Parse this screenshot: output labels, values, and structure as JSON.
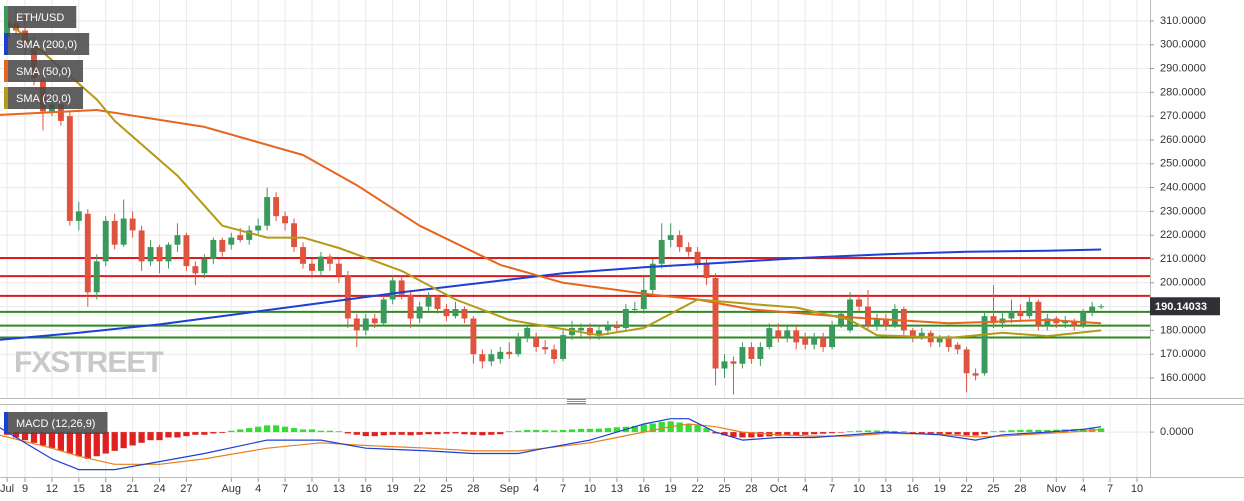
{
  "chart_data": {
    "type": "candlestick",
    "xlim": [
      -2.79,
      125.45
    ],
    "ylim": [
      151.6,
      318.8
    ],
    "grid": true,
    "xticks": [
      {
        "value": -2,
        "label": "Jul"
      },
      {
        "value": 0,
        "label": "9"
      },
      {
        "value": 3,
        "label": "12"
      },
      {
        "value": 6,
        "label": "15"
      },
      {
        "value": 9,
        "label": "18"
      },
      {
        "value": 12,
        "label": "21"
      },
      {
        "value": 15,
        "label": "24"
      },
      {
        "value": 18,
        "label": "27"
      },
      {
        "value": 23,
        "label": "Aug"
      },
      {
        "value": 26,
        "label": "4"
      },
      {
        "value": 29,
        "label": "7"
      },
      {
        "value": 32,
        "label": "10"
      },
      {
        "value": 35,
        "label": "13"
      },
      {
        "value": 38,
        "label": "16"
      },
      {
        "value": 41,
        "label": "19"
      },
      {
        "value": 44,
        "label": "22"
      },
      {
        "value": 47,
        "label": "25"
      },
      {
        "value": 50,
        "label": "28"
      },
      {
        "value": 54,
        "label": "Sep"
      },
      {
        "value": 57,
        "label": "4"
      },
      {
        "value": 60,
        "label": "7"
      },
      {
        "value": 63,
        "label": "10"
      },
      {
        "value": 66,
        "label": "13"
      },
      {
        "value": 69,
        "label": "16"
      },
      {
        "value": 72,
        "label": "19"
      },
      {
        "value": 75,
        "label": "22"
      },
      {
        "value": 78,
        "label": "25"
      },
      {
        "value": 81,
        "label": "28"
      },
      {
        "value": 84,
        "label": "Oct"
      },
      {
        "value": 87,
        "label": "4"
      },
      {
        "value": 90,
        "label": "7"
      },
      {
        "value": 93,
        "label": "10"
      },
      {
        "value": 96,
        "label": "13"
      },
      {
        "value": 99,
        "label": "16"
      },
      {
        "value": 102,
        "label": "19"
      },
      {
        "value": 105,
        "label": "22"
      },
      {
        "value": 108,
        "label": "25"
      },
      {
        "value": 111,
        "label": "28"
      },
      {
        "value": 115,
        "label": "Nov"
      },
      {
        "value": 118,
        "label": "4"
      },
      {
        "value": 121,
        "label": "7"
      },
      {
        "value": 124,
        "label": "10"
      }
    ],
    "yticks": [
      {
        "value": 160,
        "label": "160.0000"
      },
      {
        "value": 170,
        "label": "170.0000"
      },
      {
        "value": 180,
        "label": "180.0000"
      },
      {
        "value": 190,
        "label": "190.0000"
      },
      {
        "value": 200,
        "label": "200.0000"
      },
      {
        "value": 210,
        "label": "210.0000"
      },
      {
        "value": 220,
        "label": "220.0000"
      },
      {
        "value": 230,
        "label": "230.0000"
      },
      {
        "value": 240,
        "label": "240.0000"
      },
      {
        "value": 250,
        "label": "250.0000"
      },
      {
        "value": 260,
        "label": "260.0000"
      },
      {
        "value": 270,
        "label": "270.0000"
      },
      {
        "value": 280,
        "label": "280.0000"
      },
      {
        "value": 290,
        "label": "290.0000"
      },
      {
        "value": 300,
        "label": "300.0000"
      },
      {
        "value": 310,
        "label": "310.0000"
      }
    ],
    "watermark": "FXSTREET",
    "last_price": 190.14033,
    "candles": {
      "name": "ETH/USD",
      "up_color": "#3a9a5b",
      "down_color": "#e0533f",
      "x": [
        -2,
        -1,
        0,
        1,
        2,
        3,
        4,
        5,
        6,
        7,
        8,
        9,
        10,
        11,
        12,
        13,
        14,
        15,
        16,
        17,
        18,
        19,
        20,
        21,
        22,
        23,
        24,
        25,
        26,
        27,
        28,
        29,
        30,
        31,
        32,
        33,
        34,
        35,
        36,
        37,
        38,
        39,
        40,
        41,
        42,
        43,
        44,
        45,
        46,
        47,
        48,
        49,
        50,
        51,
        52,
        53,
        54,
        55,
        56,
        57,
        58,
        59,
        60,
        61,
        62,
        63,
        64,
        65,
        66,
        67,
        68,
        69,
        70,
        71,
        72,
        73,
        74,
        75,
        76,
        77,
        78,
        79,
        80,
        81,
        82,
        83,
        84,
        85,
        86,
        87,
        88,
        89,
        90,
        91,
        92,
        93,
        94,
        95,
        96,
        97,
        98,
        99,
        100,
        101,
        102,
        103,
        104,
        105,
        106,
        107,
        108,
        109,
        110,
        111,
        112,
        113,
        114,
        115,
        116,
        117,
        118,
        119,
        120
      ],
      "open": [
        303,
        309,
        306,
        300,
        285,
        272,
        275,
        270,
        226,
        229,
        196,
        209,
        226,
        216,
        227,
        222,
        209,
        215,
        209,
        216,
        220,
        207,
        204,
        210,
        218,
        216,
        220,
        218,
        222,
        224,
        236,
        228,
        225,
        215,
        208,
        205,
        211,
        208,
        203,
        185,
        180,
        185,
        183,
        193,
        201,
        195,
        185,
        190,
        194,
        189,
        186,
        189,
        185,
        170,
        167,
        168,
        171,
        170,
        177,
        177,
        173,
        172,
        168,
        178,
        180,
        181,
        178,
        180,
        182,
        181,
        189,
        189,
        197,
        208,
        218,
        220,
        215,
        213,
        208,
        202,
        164,
        167,
        166,
        173,
        168,
        173,
        180,
        177,
        180,
        177,
        174,
        177,
        173,
        182,
        180,
        193,
        190,
        182,
        185,
        182,
        189,
        180,
        177,
        179,
        175,
        177,
        174,
        172,
        162,
        162,
        186,
        183,
        185,
        188,
        186,
        192,
        182,
        185,
        183,
        184,
        182,
        188,
        190
      ],
      "high": [
        312,
        316,
        314,
        304,
        288,
        277,
        278,
        272,
        234,
        231,
        212,
        228,
        229,
        235,
        230,
        224,
        218,
        216,
        217,
        225,
        221,
        209,
        212,
        219,
        219,
        221,
        223,
        224,
        227,
        240,
        238,
        230,
        227,
        217,
        210,
        213,
        212,
        210,
        205,
        187,
        187,
        187,
        195,
        203,
        203,
        197,
        192,
        196,
        195,
        191,
        192,
        190,
        186,
        172,
        172,
        173,
        175,
        179,
        182,
        179,
        176,
        174,
        180,
        184,
        183,
        183,
        182,
        184,
        184,
        191,
        192,
        203,
        210,
        225,
        225,
        222,
        217,
        215,
        210,
        204,
        170,
        169,
        175,
        175,
        175,
        183,
        183,
        182,
        182,
        179,
        179,
        179,
        184,
        188,
        196,
        195,
        197,
        187,
        187,
        191,
        190,
        181,
        181,
        180,
        178,
        178,
        175,
        173,
        164,
        188,
        199,
        188,
        193,
        191,
        194,
        193,
        187,
        186,
        186,
        185,
        189,
        192,
        191
      ],
      "low": [
        300,
        304,
        296,
        283,
        264,
        270,
        266,
        224,
        222,
        190,
        193,
        207,
        214,
        215,
        219,
        205,
        207,
        204,
        206,
        213,
        205,
        199,
        202,
        208,
        211,
        214,
        217,
        216,
        220,
        222,
        226,
        222,
        213,
        206,
        202,
        203,
        205,
        200,
        181,
        173,
        178,
        181,
        182,
        191,
        193,
        181,
        183,
        188,
        187,
        184,
        185,
        183,
        166,
        164,
        165,
        166,
        168,
        169,
        175,
        171,
        170,
        166,
        167,
        176,
        177,
        176,
        176,
        178,
        179,
        180,
        187,
        187,
        195,
        206,
        215,
        213,
        211,
        206,
        199,
        157,
        160,
        153,
        164,
        166,
        165,
        172,
        175,
        175,
        172,
        172,
        172,
        171,
        172,
        181,
        179,
        188,
        180,
        180,
        180,
        181,
        178,
        175,
        176,
        173,
        173,
        171,
        170,
        154,
        159,
        161,
        181,
        181,
        183,
        184,
        185,
        180,
        180,
        181,
        181,
        180,
        181,
        186,
        189
      ],
      "close": [
        309,
        306,
        300,
        286,
        272,
        275,
        268,
        226,
        230,
        196,
        209,
        226,
        216,
        227,
        222,
        209,
        215,
        209,
        216,
        220,
        207,
        204,
        210,
        218,
        213,
        219,
        218,
        222,
        224,
        236,
        228,
        225,
        215,
        208,
        205,
        211,
        208,
        203,
        185,
        180,
        185,
        183,
        193,
        201,
        195,
        185,
        190,
        194,
        189,
        186,
        189,
        185,
        170,
        167,
        170,
        171,
        170,
        177,
        181,
        173,
        172,
        168,
        178,
        181,
        181,
        178,
        180,
        182,
        181,
        189,
        189,
        197,
        208,
        218,
        220,
        215,
        213,
        208,
        202,
        164,
        167,
        166,
        173,
        168,
        173,
        181,
        177,
        180,
        175,
        174,
        177,
        173,
        182,
        187,
        193,
        190,
        182,
        185,
        182,
        189,
        180,
        177,
        179,
        175,
        177,
        173,
        172,
        162,
        161,
        186,
        183,
        185,
        188,
        186,
        192,
        182,
        185,
        183,
        184,
        182,
        188,
        190,
        190.14033
      ]
    },
    "series": [
      {
        "name": "SMA (200,0)",
        "color": "#1c3fd6",
        "x": [
          -3,
          6,
          15,
          24,
          33,
          42,
          51,
          60,
          69,
          78,
          87,
          96,
          105,
          114,
          120
        ],
        "values": [
          176,
          179,
          182.5,
          187,
          191.5,
          196,
          200,
          204,
          206.5,
          208.5,
          210.5,
          212,
          213,
          213.5,
          214
        ]
      },
      {
        "name": "SMA (50,0)",
        "color": "#e8651e",
        "x": [
          -3,
          8,
          20,
          31,
          37,
          44,
          53,
          60,
          70,
          75,
          81,
          92,
          103,
          114,
          120
        ],
        "values": [
          270.5,
          272.6,
          265.5,
          253.7,
          241,
          224,
          207.5,
          200,
          195,
          193,
          188.8,
          185.5,
          183,
          184.4,
          183
        ]
      },
      {
        "name": "SMA (20,0)",
        "color": "#b39a17",
        "x": [
          -2,
          8,
          10,
          17,
          22,
          27,
          31,
          35,
          42,
          48,
          54,
          64,
          69,
          75,
          82,
          86,
          92,
          95,
          103,
          109,
          114,
          120
        ],
        "values": [
          310,
          277,
          268,
          245,
          224,
          219,
          219,
          214.6,
          205,
          193,
          184.4,
          178,
          181,
          193,
          190.8,
          189.6,
          184.4,
          178,
          176.8,
          179,
          177.6,
          180
        ]
      }
    ],
    "levels": [
      {
        "value": 210.4,
        "color": "#e01b1b"
      },
      {
        "value": 202.8,
        "color": "#e01b1b"
      },
      {
        "value": 194.5,
        "color": "#e01b1b"
      },
      {
        "value": 187.8,
        "color": "#2e8a1f"
      },
      {
        "value": 182,
        "color": "#2e8a1f"
      },
      {
        "value": 177,
        "color": "#2e8a1f"
      }
    ],
    "macd": {
      "name": "MACD (12,26,9)",
      "ylim": [
        -16,
        10.1
      ],
      "yticks": [
        {
          "value": 0,
          "label": "0.0000"
        }
      ],
      "macd_color": "#1c3fd6",
      "signal_color": "#e8801e",
      "up_color": "#33dd33",
      "down_color": "#e02020",
      "x": [
        -3,
        3,
        6,
        10,
        15,
        20,
        27,
        33,
        38,
        45,
        50,
        55,
        58,
        63,
        66,
        69,
        72,
        74,
        77,
        80,
        84,
        88,
        92,
        96,
        102,
        106,
        109,
        114,
        118,
        120
      ],
      "macd": [
        2,
        -10,
        -14,
        -14,
        -11,
        -8,
        -3,
        -3,
        -6,
        -7,
        -8,
        -8,
        -6,
        -3,
        0,
        3,
        5,
        5,
        0,
        -3,
        -2,
        -2,
        -1,
        0,
        -1,
        -3,
        -1,
        0,
        1,
        2
      ],
      "signal": [
        -1,
        -6,
        -9,
        -12,
        -12,
        -10,
        -6,
        -4,
        -5,
        -6,
        -7,
        -7,
        -6,
        -4,
        -2,
        0,
        2,
        3,
        2,
        0,
        -1,
        -1.5,
        -1.5,
        -0.5,
        -0.8,
        -1.8,
        -1.5,
        -0.5,
        0.3,
        1
      ],
      "histogram": [
        -1,
        -2,
        -3,
        -4,
        -5,
        -6,
        -7,
        -8,
        -9,
        -10,
        -9,
        -8,
        -7,
        -6,
        -5,
        -4,
        -3,
        -3,
        -2,
        -2,
        -1.5,
        -1,
        -1,
        -0.5,
        -0.3,
        0.5,
        1,
        1.5,
        2,
        2.5,
        2.5,
        2,
        1.5,
        1,
        1,
        0.5,
        0.5,
        0.3,
        -0.5,
        -1,
        -1.5,
        -1.5,
        -1.2,
        -1,
        -1,
        -1.2,
        -1,
        -0.8,
        -0.8,
        -0.6,
        -0.5,
        -0.8,
        -1,
        -1.2,
        -1,
        -0.8,
        0.3,
        0.5,
        0.8,
        0.8,
        0.7,
        0.6,
        0.8,
        1,
        1.2,
        1.2,
        1.3,
        1.5,
        1.8,
        2,
        2.3,
        2.8,
        3.2,
        3.8,
        4,
        3.6,
        3,
        2.5,
        1.5,
        -0.5,
        -1.2,
        -1.8,
        -2,
        -2,
        -1.8,
        -1.6,
        -1.4,
        -1.3,
        -1.2,
        -1,
        -0.8,
        -0.6,
        -0.4,
        -0.2,
        0.3,
        0.5,
        0.6,
        0.6,
        0.5,
        0.4,
        0.3,
        -0.3,
        -0.5,
        -0.6,
        -0.7,
        -0.8,
        -0.9,
        -1.2,
        -1.3,
        -0.8,
        0.3,
        0.5,
        0.7,
        0.8,
        0.9,
        0.8,
        0.8,
        0.9,
        1,
        1.1,
        1.2,
        1.3,
        1.4
      ]
    }
  }
}
